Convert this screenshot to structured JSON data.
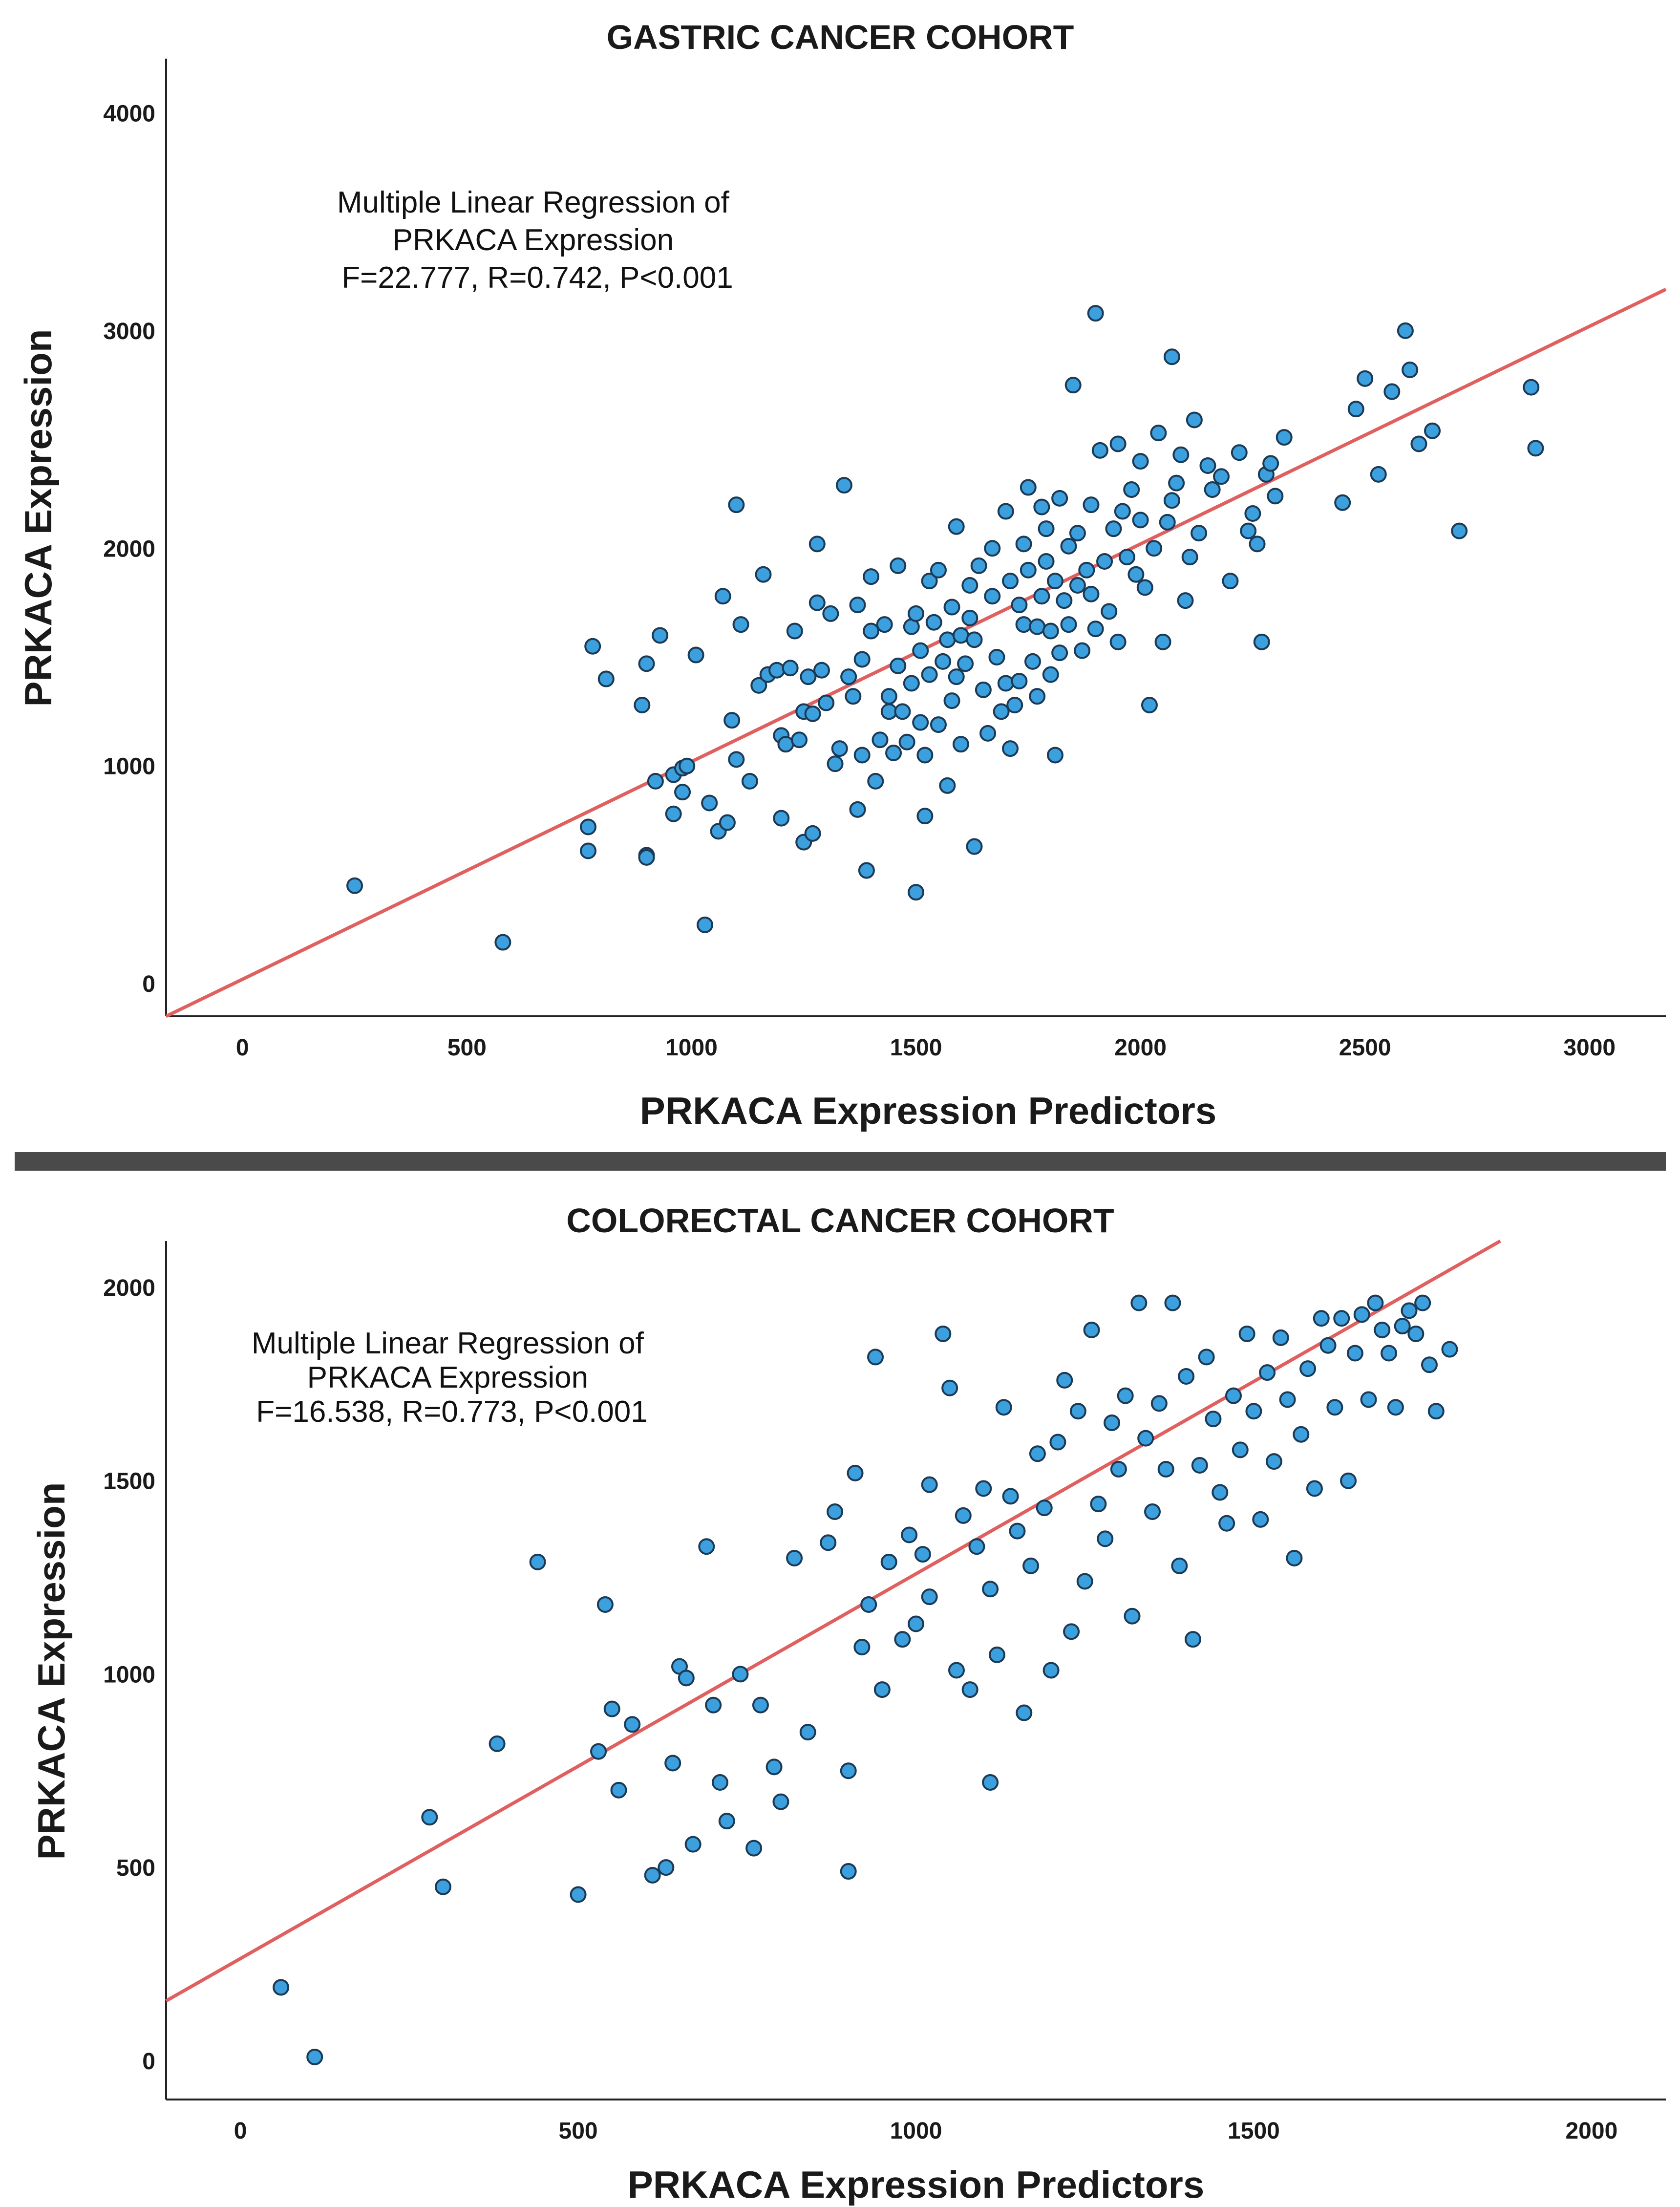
{
  "chart_data": [
    {
      "type": "scatter",
      "title": "GASTRIC CANCER COHORT",
      "xlabel": "PRKACA Expression Predictors",
      "ylabel": "PRKACA Expression",
      "xlim": [
        -170,
        3170
      ],
      "ylim": [
        -150,
        4250
      ],
      "xticks": [
        0,
        500,
        1000,
        1500,
        2000,
        2500,
        3000
      ],
      "yticks": [
        0,
        1000,
        2000,
        3000,
        4000
      ],
      "annotation": [
        "Multiple Linear Regression of",
        "PRKACA Expression",
        "F=22.777, R=0.742, P<0.001"
      ],
      "fit_line": {
        "x": [
          -170,
          3170
        ],
        "y": [
          -150,
          3190
        ]
      },
      "points": [
        [
          250,
          450
        ],
        [
          580,
          190
        ],
        [
          770,
          720
        ],
        [
          770,
          610
        ],
        [
          780,
          1550
        ],
        [
          810,
          1400
        ],
        [
          890,
          1280
        ],
        [
          900,
          1470
        ],
        [
          900,
          590
        ],
        [
          900,
          580
        ],
        [
          920,
          930
        ],
        [
          930,
          1600
        ],
        [
          960,
          780
        ],
        [
          960,
          960
        ],
        [
          980,
          880
        ],
        [
          980,
          990
        ],
        [
          990,
          1000
        ],
        [
          1010,
          1510
        ],
        [
          1030,
          270
        ],
        [
          1040,
          830
        ],
        [
          1060,
          700
        ],
        [
          1070,
          1780
        ],
        [
          1080,
          740
        ],
        [
          1090,
          1210
        ],
        [
          1100,
          1030
        ],
        [
          1100,
          2200
        ],
        [
          1110,
          1650
        ],
        [
          1130,
          930
        ],
        [
          1150,
          1370
        ],
        [
          1160,
          1880
        ],
        [
          1170,
          1420
        ],
        [
          1190,
          1440
        ],
        [
          1200,
          760
        ],
        [
          1200,
          1140
        ],
        [
          1210,
          1100
        ],
        [
          1220,
          1450
        ],
        [
          1230,
          1620
        ],
        [
          1240,
          1120
        ],
        [
          1250,
          650
        ],
        [
          1250,
          1250
        ],
        [
          1260,
          1410
        ],
        [
          1270,
          690
        ],
        [
          1270,
          1240
        ],
        [
          1280,
          2020
        ],
        [
          1280,
          1750
        ],
        [
          1290,
          1440
        ],
        [
          1300,
          1290
        ],
        [
          1310,
          1700
        ],
        [
          1320,
          1010
        ],
        [
          1330,
          1080
        ],
        [
          1340,
          2290
        ],
        [
          1350,
          1410
        ],
        [
          1360,
          1320
        ],
        [
          1370,
          800
        ],
        [
          1370,
          1740
        ],
        [
          1380,
          1490
        ],
        [
          1380,
          1050
        ],
        [
          1390,
          520
        ],
        [
          1400,
          1870
        ],
        [
          1400,
          1620
        ],
        [
          1410,
          930
        ],
        [
          1420,
          1120
        ],
        [
          1430,
          1650
        ],
        [
          1440,
          1250
        ],
        [
          1440,
          1320
        ],
        [
          1450,
          1060
        ],
        [
          1460,
          1920
        ],
        [
          1460,
          1460
        ],
        [
          1470,
          1250
        ],
        [
          1480,
          1110
        ],
        [
          1490,
          1640
        ],
        [
          1490,
          1380
        ],
        [
          1500,
          1700
        ],
        [
          1500,
          420
        ],
        [
          1510,
          1530
        ],
        [
          1510,
          1200
        ],
        [
          1520,
          770
        ],
        [
          1520,
          1050
        ],
        [
          1530,
          1850
        ],
        [
          1530,
          1420
        ],
        [
          1540,
          1660
        ],
        [
          1550,
          1900
        ],
        [
          1550,
          1190
        ],
        [
          1560,
          1480
        ],
        [
          1570,
          1580
        ],
        [
          1570,
          910
        ],
        [
          1580,
          1730
        ],
        [
          1580,
          1300
        ],
        [
          1590,
          2100
        ],
        [
          1590,
          1410
        ],
        [
          1600,
          1600
        ],
        [
          1600,
          1100
        ],
        [
          1610,
          1470
        ],
        [
          1620,
          1830
        ],
        [
          1620,
          1680
        ],
        [
          1630,
          1580
        ],
        [
          1630,
          630
        ],
        [
          1640,
          1920
        ],
        [
          1650,
          1350
        ],
        [
          1660,
          1150
        ],
        [
          1670,
          1780
        ],
        [
          1670,
          2000
        ],
        [
          1680,
          1500
        ],
        [
          1690,
          1250
        ],
        [
          1700,
          1380
        ],
        [
          1700,
          2170
        ],
        [
          1710,
          1850
        ],
        [
          1710,
          1080
        ],
        [
          1720,
          1280
        ],
        [
          1730,
          1740
        ],
        [
          1730,
          1390
        ],
        [
          1740,
          1650
        ],
        [
          1740,
          2020
        ],
        [
          1750,
          1900
        ],
        [
          1750,
          2280
        ],
        [
          1760,
          1480
        ],
        [
          1770,
          1640
        ],
        [
          1770,
          1320
        ],
        [
          1780,
          2190
        ],
        [
          1780,
          1780
        ],
        [
          1790,
          2090
        ],
        [
          1790,
          1940
        ],
        [
          1800,
          1620
        ],
        [
          1800,
          1420
        ],
        [
          1810,
          1850
        ],
        [
          1810,
          1050
        ],
        [
          1820,
          2230
        ],
        [
          1820,
          1520
        ],
        [
          1830,
          1760
        ],
        [
          1840,
          2010
        ],
        [
          1840,
          1650
        ],
        [
          1850,
          2750
        ],
        [
          1860,
          1830
        ],
        [
          1860,
          2070
        ],
        [
          1870,
          1530
        ],
        [
          1880,
          1900
        ],
        [
          1890,
          2200
        ],
        [
          1890,
          1790
        ],
        [
          1900,
          3080
        ],
        [
          1900,
          1630
        ],
        [
          1910,
          2450
        ],
        [
          1920,
          1940
        ],
        [
          1930,
          1710
        ],
        [
          1940,
          2090
        ],
        [
          1950,
          2480
        ],
        [
          1950,
          1570
        ],
        [
          1960,
          2170
        ],
        [
          1970,
          1960
        ],
        [
          1980,
          2270
        ],
        [
          1990,
          1880
        ],
        [
          2000,
          2130
        ],
        [
          2000,
          2400
        ],
        [
          2010,
          1820
        ],
        [
          2020,
          1280
        ],
        [
          2030,
          2000
        ],
        [
          2040,
          2530
        ],
        [
          2050,
          1570
        ],
        [
          2060,
          2120
        ],
        [
          2070,
          2880
        ],
        [
          2070,
          2220
        ],
        [
          2080,
          2300
        ],
        [
          2090,
          2430
        ],
        [
          2100,
          1760
        ],
        [
          2110,
          1960
        ],
        [
          2120,
          2590
        ],
        [
          2130,
          2070
        ],
        [
          2150,
          2380
        ],
        [
          2160,
          2270
        ],
        [
          2180,
          2330
        ],
        [
          2200,
          1850
        ],
        [
          2220,
          2440
        ],
        [
          2240,
          2080
        ],
        [
          2250,
          2160
        ],
        [
          2260,
          2020
        ],
        [
          2270,
          1570
        ],
        [
          2280,
          2340
        ],
        [
          2290,
          2390
        ],
        [
          2300,
          2240
        ],
        [
          2320,
          2510
        ],
        [
          2450,
          2210
        ],
        [
          2480,
          2640
        ],
        [
          2500,
          2780
        ],
        [
          2530,
          2340
        ],
        [
          2560,
          2720
        ],
        [
          2590,
          3000
        ],
        [
          2600,
          2820
        ],
        [
          2620,
          2480
        ],
        [
          2650,
          2540
        ],
        [
          2710,
          2080
        ],
        [
          2870,
          2740
        ],
        [
          2880,
          2460
        ]
      ]
    },
    {
      "type": "scatter",
      "title": "COLORECTAL CANCER COHORT",
      "xlabel": "PRKACA Expression Predictors",
      "ylabel": "PRKACA Expression",
      "xlim": [
        -110,
        2110
      ],
      "ylim": [
        -100,
        2120
      ],
      "xticks": [
        0,
        500,
        1000,
        1500,
        2000
      ],
      "yticks": [
        0,
        500,
        1000,
        1500,
        2000
      ],
      "annotation": [
        "Multiple Linear Regression of",
        "PRKACA Expression",
        "F=16.538, R=0.773, P<0.001"
      ],
      "fit_line": {
        "x": [
          -110,
          1865
        ],
        "y": [
          155,
          2120
        ]
      },
      "points": [
        [
          60,
          190
        ],
        [
          110,
          10
        ],
        [
          280,
          630
        ],
        [
          300,
          450
        ],
        [
          380,
          820
        ],
        [
          440,
          1290
        ],
        [
          500,
          430
        ],
        [
          530,
          800
        ],
        [
          540,
          1180
        ],
        [
          550,
          910
        ],
        [
          560,
          700
        ],
        [
          580,
          870
        ],
        [
          610,
          480
        ],
        [
          630,
          500
        ],
        [
          640,
          770
        ],
        [
          650,
          1020
        ],
        [
          660,
          990
        ],
        [
          670,
          560
        ],
        [
          690,
          1330
        ],
        [
          700,
          920
        ],
        [
          710,
          720
        ],
        [
          720,
          620
        ],
        [
          740,
          1000
        ],
        [
          760,
          550
        ],
        [
          770,
          920
        ],
        [
          790,
          760
        ],
        [
          800,
          670
        ],
        [
          820,
          1300
        ],
        [
          840,
          850
        ],
        [
          870,
          1340
        ],
        [
          880,
          1420
        ],
        [
          900,
          750
        ],
        [
          900,
          490
        ],
        [
          910,
          1520
        ],
        [
          920,
          1070
        ],
        [
          930,
          1180
        ],
        [
          940,
          1820
        ],
        [
          950,
          960
        ],
        [
          960,
          1290
        ],
        [
          980,
          1090
        ],
        [
          990,
          1360
        ],
        [
          1000,
          1130
        ],
        [
          1010,
          1310
        ],
        [
          1020,
          1490
        ],
        [
          1020,
          1200
        ],
        [
          1040,
          1880
        ],
        [
          1050,
          1740
        ],
        [
          1060,
          1010
        ],
        [
          1070,
          1410
        ],
        [
          1080,
          960
        ],
        [
          1090,
          1330
        ],
        [
          1100,
          1480
        ],
        [
          1110,
          1220
        ],
        [
          1110,
          720
        ],
        [
          1120,
          1050
        ],
        [
          1130,
          1690
        ],
        [
          1140,
          1460
        ],
        [
          1150,
          1370
        ],
        [
          1160,
          900
        ],
        [
          1170,
          1280
        ],
        [
          1180,
          1570
        ],
        [
          1190,
          1430
        ],
        [
          1200,
          1010
        ],
        [
          1210,
          1600
        ],
        [
          1220,
          1760
        ],
        [
          1230,
          1110
        ],
        [
          1240,
          1680
        ],
        [
          1250,
          1240
        ],
        [
          1260,
          1890
        ],
        [
          1270,
          1440
        ],
        [
          1280,
          1350
        ],
        [
          1290,
          1650
        ],
        [
          1300,
          1530
        ],
        [
          1310,
          1720
        ],
        [
          1320,
          1150
        ],
        [
          1330,
          1960
        ],
        [
          1340,
          1610
        ],
        [
          1350,
          1420
        ],
        [
          1360,
          1700
        ],
        [
          1370,
          1530
        ],
        [
          1380,
          1960
        ],
        [
          1390,
          1280
        ],
        [
          1400,
          1770
        ],
        [
          1410,
          1090
        ],
        [
          1420,
          1540
        ],
        [
          1430,
          1820
        ],
        [
          1440,
          1660
        ],
        [
          1450,
          1470
        ],
        [
          1460,
          1390
        ],
        [
          1470,
          1720
        ],
        [
          1480,
          1580
        ],
        [
          1490,
          1880
        ],
        [
          1500,
          1680
        ],
        [
          1510,
          1400
        ],
        [
          1520,
          1780
        ],
        [
          1530,
          1550
        ],
        [
          1540,
          1870
        ],
        [
          1550,
          1710
        ],
        [
          1560,
          1300
        ],
        [
          1570,
          1620
        ],
        [
          1580,
          1790
        ],
        [
          1590,
          1480
        ],
        [
          1600,
          1920
        ],
        [
          1610,
          1850
        ],
        [
          1620,
          1690
        ],
        [
          1630,
          1920
        ],
        [
          1640,
          1500
        ],
        [
          1650,
          1830
        ],
        [
          1660,
          1930
        ],
        [
          1670,
          1710
        ],
        [
          1680,
          1960
        ],
        [
          1690,
          1890
        ],
        [
          1700,
          1830
        ],
        [
          1710,
          1690
        ],
        [
          1720,
          1900
        ],
        [
          1730,
          1940
        ],
        [
          1740,
          1880
        ],
        [
          1750,
          1960
        ],
        [
          1760,
          1800
        ],
        [
          1770,
          1680
        ],
        [
          1790,
          1840
        ]
      ]
    }
  ]
}
